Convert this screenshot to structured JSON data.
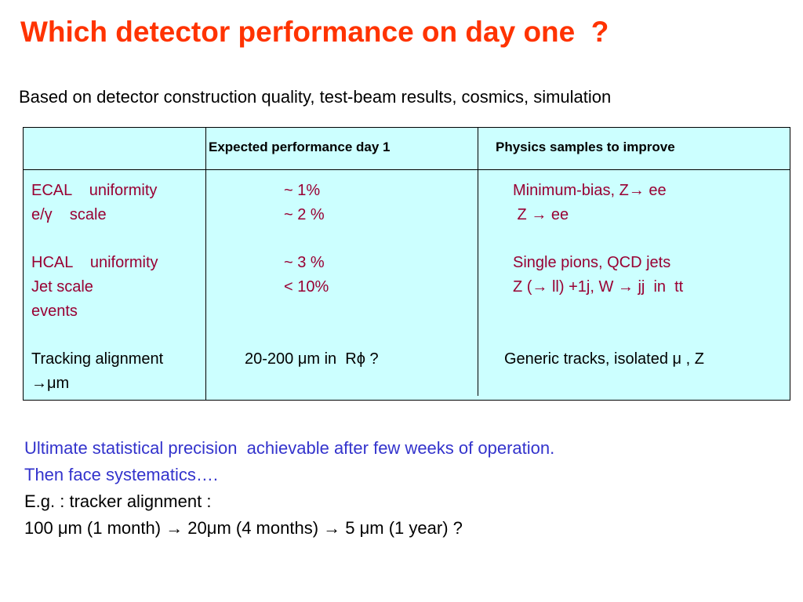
{
  "title": "Which detector performance on day one  ?",
  "subtitle": "Based on detector construction quality, test-beam results, cosmics, simulation",
  "table": {
    "headers": [
      "",
      "Expected performance day 1",
      "Physics samples to improve"
    ],
    "rows": [
      {
        "item": "ECAL    uniformity",
        "expected": "~ 1%",
        "samples": "Minimum-bias, Z→ ee"
      },
      {
        "item": "e/γ    scale",
        "expected": "~ 2 %",
        "samples": " Z → ee"
      },
      {
        "item": "HCAL    uniformity",
        "expected": "~ 3 %",
        "samples": "Single pions, QCD jets"
      },
      {
        "item": "Jet scale",
        "expected": "< 10%",
        "samples": "Z (→ ll) +1j, W → jj  in  tt"
      },
      {
        "item": "events",
        "expected": "",
        "samples": ""
      },
      {
        "item": "Tracking alignment",
        "expected": "20-200 μm in  Rϕ ?",
        "samples": "Generic tracks, isolated μ , Z"
      },
      {
        "item": "→μm",
        "expected": "",
        "samples": ""
      }
    ]
  },
  "notes": [
    {
      "text": "Ultimate statistical precision  achievable after few weeks of operation.",
      "color": "#3333cc"
    },
    {
      "text": "Then face systematics….",
      "color": "#3333cc"
    },
    {
      "text": "E.g. : tracker alignment :",
      "color": "#000000"
    },
    {
      "text": "100 μm (1 month) → 20μm (4 months) → 5 μm (1 year) ?",
      "color": "#000000"
    }
  ]
}
